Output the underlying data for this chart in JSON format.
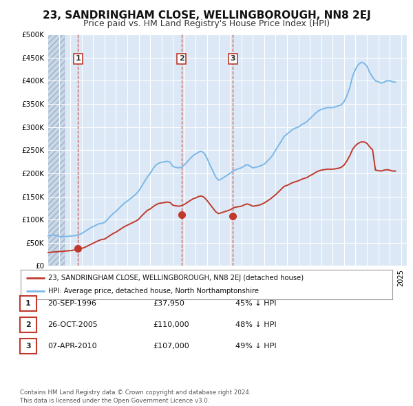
{
  "title": "23, SANDRINGHAM CLOSE, WELLINGBOROUGH, NN8 2EJ",
  "subtitle": "Price paid vs. HM Land Registry's House Price Index (HPI)",
  "title_fontsize": 11,
  "subtitle_fontsize": 9,
  "background_color": "#ffffff",
  "plot_bg_color": "#dce8f5",
  "grid_color": "#ffffff",
  "hatch_color": "#b8c8d8",
  "ylim": [
    0,
    500000
  ],
  "yticks": [
    0,
    50000,
    100000,
    150000,
    200000,
    250000,
    300000,
    350000,
    400000,
    450000,
    500000
  ],
  "ytick_labels": [
    "£0",
    "£50K",
    "£100K",
    "£150K",
    "£200K",
    "£250K",
    "£300K",
    "£350K",
    "£400K",
    "£450K",
    "£500K"
  ],
  "hpi_color": "#7ab8e8",
  "price_color": "#c0392b",
  "marker_color": "#c0392b",
  "marker_size": 7,
  "xlim_min": 1994.0,
  "xlim_max": 2025.5,
  "sale_dates": [
    "1996-09-20",
    "2005-10-26",
    "2010-04-07"
  ],
  "sale_prices": [
    37950,
    110000,
    107000
  ],
  "sale_labels": [
    "1",
    "2",
    "3"
  ],
  "legend_label_price": "23, SANDRINGHAM CLOSE, WELLINGBOROUGH, NN8 2EJ (detached house)",
  "legend_label_hpi": "HPI: Average price, detached house, North Northamptonshire",
  "table_rows": [
    {
      "num": "1",
      "date": "20-SEP-1996",
      "price": "£37,950",
      "pct": "45% ↓ HPI"
    },
    {
      "num": "2",
      "date": "26-OCT-2005",
      "price": "£110,000",
      "pct": "48% ↓ HPI"
    },
    {
      "num": "3",
      "date": "07-APR-2010",
      "price": "£107,000",
      "pct": "49% ↓ HPI"
    }
  ],
  "footer": "Contains HM Land Registry data © Crown copyright and database right 2024.\nThis data is licensed under the Open Government Licence v3.0.",
  "hpi_x": [
    1994.0,
    1994.25,
    1994.5,
    1994.75,
    1995.0,
    1995.25,
    1995.5,
    1995.75,
    1996.0,
    1996.25,
    1996.5,
    1996.75,
    1997.0,
    1997.25,
    1997.5,
    1997.75,
    1998.0,
    1998.25,
    1998.5,
    1998.75,
    1999.0,
    1999.25,
    1999.5,
    1999.75,
    2000.0,
    2000.25,
    2000.5,
    2000.75,
    2001.0,
    2001.25,
    2001.5,
    2001.75,
    2002.0,
    2002.25,
    2002.5,
    2002.75,
    2003.0,
    2003.25,
    2003.5,
    2003.75,
    2004.0,
    2004.25,
    2004.5,
    2004.75,
    2005.0,
    2005.25,
    2005.5,
    2005.75,
    2006.0,
    2006.25,
    2006.5,
    2006.75,
    2007.0,
    2007.25,
    2007.5,
    2007.75,
    2008.0,
    2008.25,
    2008.5,
    2008.75,
    2009.0,
    2009.25,
    2009.5,
    2009.75,
    2010.0,
    2010.25,
    2010.5,
    2010.75,
    2011.0,
    2011.25,
    2011.5,
    2011.75,
    2012.0,
    2012.25,
    2012.5,
    2012.75,
    2013.0,
    2013.25,
    2013.5,
    2013.75,
    2014.0,
    2014.25,
    2014.5,
    2014.75,
    2015.0,
    2015.25,
    2015.5,
    2015.75,
    2016.0,
    2016.25,
    2016.5,
    2016.75,
    2017.0,
    2017.25,
    2017.5,
    2017.75,
    2018.0,
    2018.25,
    2018.5,
    2018.75,
    2019.0,
    2019.25,
    2019.5,
    2019.75,
    2020.0,
    2020.25,
    2020.5,
    2020.75,
    2021.0,
    2021.25,
    2021.5,
    2021.75,
    2022.0,
    2022.25,
    2022.5,
    2022.75,
    2023.0,
    2023.25,
    2023.5,
    2023.75,
    2024.0,
    2024.25,
    2024.5
  ],
  "hpi_y": [
    65000,
    66000,
    67000,
    66000,
    64000,
    63000,
    63500,
    64000,
    64500,
    65000,
    66000,
    67500,
    70000,
    74000,
    78000,
    82000,
    85000,
    88000,
    91000,
    92000,
    94000,
    100000,
    107000,
    113000,
    118000,
    124000,
    130000,
    136000,
    140000,
    145000,
    150000,
    155000,
    162000,
    172000,
    182000,
    192000,
    200000,
    210000,
    218000,
    222000,
    224000,
    225000,
    226000,
    224000,
    215000,
    213000,
    212000,
    213000,
    218000,
    225000,
    232000,
    238000,
    242000,
    246000,
    248000,
    243000,
    232000,
    218000,
    205000,
    192000,
    185000,
    188000,
    192000,
    196000,
    200000,
    205000,
    208000,
    210000,
    212000,
    216000,
    219000,
    216000,
    212000,
    213000,
    215000,
    217000,
    220000,
    226000,
    232000,
    240000,
    250000,
    260000,
    270000,
    280000,
    285000,
    290000,
    295000,
    298000,
    300000,
    305000,
    308000,
    312000,
    318000,
    324000,
    330000,
    335000,
    338000,
    340000,
    342000,
    342000,
    342000,
    344000,
    346000,
    348000,
    355000,
    368000,
    385000,
    410000,
    425000,
    435000,
    440000,
    438000,
    432000,
    418000,
    408000,
    400000,
    398000,
    395000,
    397000,
    400000,
    400000,
    398000,
    397000
  ],
  "price_x": [
    1994.0,
    1994.25,
    1994.5,
    1994.75,
    1995.0,
    1995.25,
    1995.5,
    1995.75,
    1996.0,
    1996.25,
    1996.5,
    1996.75,
    1997.0,
    1997.25,
    1997.5,
    1997.75,
    1998.0,
    1998.25,
    1998.5,
    1998.75,
    1999.0,
    1999.25,
    1999.5,
    1999.75,
    2000.0,
    2000.25,
    2000.5,
    2000.75,
    2001.0,
    2001.25,
    2001.5,
    2001.75,
    2002.0,
    2002.25,
    2002.5,
    2002.75,
    2003.0,
    2003.25,
    2003.5,
    2003.75,
    2004.0,
    2004.25,
    2004.5,
    2004.75,
    2005.0,
    2005.25,
    2005.5,
    2005.75,
    2006.0,
    2006.25,
    2006.5,
    2006.75,
    2007.0,
    2007.25,
    2007.5,
    2007.75,
    2008.0,
    2008.25,
    2008.5,
    2008.75,
    2009.0,
    2009.25,
    2009.5,
    2009.75,
    2010.0,
    2010.25,
    2010.5,
    2010.75,
    2011.0,
    2011.25,
    2011.5,
    2011.75,
    2012.0,
    2012.25,
    2012.5,
    2012.75,
    2013.0,
    2013.25,
    2013.5,
    2013.75,
    2014.0,
    2014.25,
    2014.5,
    2014.75,
    2015.0,
    2015.25,
    2015.5,
    2015.75,
    2016.0,
    2016.25,
    2016.5,
    2016.75,
    2017.0,
    2017.25,
    2017.5,
    2017.75,
    2018.0,
    2018.25,
    2018.5,
    2018.75,
    2019.0,
    2019.25,
    2019.5,
    2019.75,
    2020.0,
    2020.25,
    2020.5,
    2020.75,
    2021.0,
    2021.25,
    2021.5,
    2021.75,
    2022.0,
    2022.25,
    2022.5,
    2022.75,
    2023.0,
    2023.25,
    2023.5,
    2023.75,
    2024.0,
    2024.25,
    2024.5
  ],
  "price_y": [
    29000,
    29500,
    30000,
    30500,
    31000,
    31500,
    32000,
    32500,
    33000,
    34000,
    35000,
    36000,
    38000,
    40000,
    43000,
    46000,
    49000,
    52000,
    55000,
    57000,
    58000,
    62000,
    66000,
    70000,
    73000,
    77000,
    81000,
    85000,
    88000,
    91000,
    94000,
    97000,
    101000,
    108000,
    114000,
    120000,
    123000,
    128000,
    132000,
    135000,
    136000,
    137000,
    138000,
    137000,
    131000,
    130000,
    129000,
    130000,
    133000,
    137000,
    141000,
    145000,
    147000,
    150000,
    151000,
    148000,
    141000,
    133000,
    125000,
    117000,
    113000,
    115000,
    117000,
    119000,
    121000,
    125000,
    127000,
    128000,
    129000,
    132000,
    134000,
    132000,
    129000,
    130000,
    131000,
    133000,
    136000,
    140000,
    144000,
    149000,
    154000,
    160000,
    166000,
    172000,
    174000,
    177000,
    180000,
    182000,
    184000,
    187000,
    189000,
    191000,
    195000,
    198000,
    202000,
    205000,
    207000,
    208000,
    209000,
    209000,
    209000,
    210000,
    211000,
    213000,
    218000,
    227000,
    238000,
    252000,
    260000,
    265000,
    268000,
    268000,
    265000,
    257000,
    251000,
    207000,
    206000,
    205000,
    207000,
    208000,
    207000,
    205000,
    205000
  ]
}
